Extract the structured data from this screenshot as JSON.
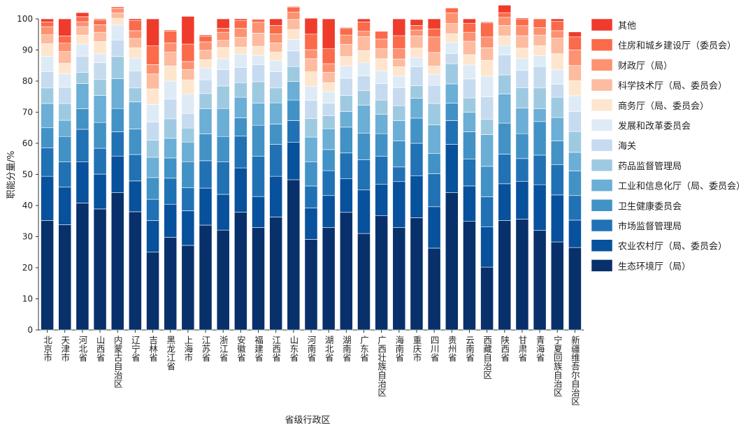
{
  "chart_data": {
    "type": "bar",
    "stacked": true,
    "title": "",
    "xlabel": "省级行政区",
    "ylabel": "职能分量/%",
    "ylim": [
      0,
      100
    ],
    "yticks": [
      0,
      10,
      20,
      30,
      40,
      50,
      60,
      70,
      80,
      90,
      100
    ],
    "legend_position": "right",
    "categories": [
      "北京市",
      "天津市",
      "河北省",
      "山西省",
      "内蒙古自治区",
      "辽宁省",
      "吉林省",
      "黑龙江省",
      "上海市",
      "江苏省",
      "浙江省",
      "安徽省",
      "福建省",
      "江西省",
      "山东省",
      "河南省",
      "湖北省",
      "湖南省",
      "广东省",
      "广西壮族自治区",
      "海南省",
      "重庆市",
      "四川省",
      "贵州省",
      "云南省",
      "西藏自治区",
      "陕西省",
      "甘肃省",
      "青海省",
      "宁夏回族自治区",
      "新疆维吾尔自治区"
    ],
    "series": [
      {
        "name": "生态环境厅（局）",
        "color": "#08306b",
        "values": [
          35.2,
          33.8,
          40.8,
          38.9,
          44.2,
          38.0,
          25.0,
          29.8,
          27.2,
          33.7,
          32.1,
          37.9,
          32.9,
          36.3,
          48.3,
          29.1,
          32.9,
          37.8,
          31.0,
          36.7,
          32.9,
          36.1,
          26.3,
          44.2,
          34.9,
          20.2,
          35.2,
          35.6,
          32.0,
          28.3,
          26.5
        ]
      },
      {
        "name": "农业农村厅（局、委员会）",
        "color": "#08519c",
        "values": [
          14.2,
          12.1,
          13.2,
          11.2,
          11.7,
          9.9,
          10.2,
          10.6,
          11.1,
          11.9,
          11.5,
          14.2,
          10.0,
          13.1,
          12.0,
          10.1,
          10.3,
          10.8,
          14.0,
          10.1,
          14.8,
          13.4,
          13.3,
          15.5,
          11.4,
          12.9,
          11.8,
          12.2,
          14.7,
          15.1,
          8.8
        ]
      },
      {
        "name": "市场监督管理局",
        "color": "#2171b5",
        "values": [
          9.1,
          8.1,
          10.5,
          8.3,
          7.8,
          8.5,
          6.8,
          8.4,
          7.4,
          8.8,
          10.4,
          10.2,
          12.9,
          10.3,
          7.0,
          7.1,
          8.0,
          8.3,
          9.7,
          9.0,
          4.7,
          10.5,
          10.6,
          7.6,
          8.6,
          9.7,
          9.5,
          7.3,
          9.5,
          9.7,
          7.9
        ]
      },
      {
        "name": "卫生健康委员会",
        "color": "#4292c6",
        "values": [
          6.5,
          8.2,
          6.6,
          8.3,
          7.5,
          8.2,
          7.0,
          6.5,
          8.4,
          8.6,
          8.2,
          5.9,
          10.0,
          6.5,
          6.6,
          7.7,
          6.8,
          8.3,
          8.6,
          7.3,
          8.4,
          8.1,
          6.5,
          5.6,
          8.8,
          9.8,
          10.0,
          8.0,
          10.8,
          7.7,
          7.9
        ]
      },
      {
        "name": "工业和信息化厅（局、委员会）",
        "color": "#6baed6",
        "values": [
          7.8,
          5.2,
          8.1,
          8.7,
          9.6,
          8.7,
          6.5,
          6.3,
          6.3,
          8.1,
          9.0,
          6.6,
          7.1,
          6.8,
          6.0,
          8.0,
          6.7,
          5.0,
          8.9,
          6.2,
          6.5,
          6.4,
          9.2,
          6.2,
          6.3,
          10.2,
          9.3,
          8.2,
          4.1,
          7.5,
          6.0
        ]
      },
      {
        "name": "药品监督管理局",
        "color": "#9ecae1",
        "values": [
          5.0,
          5.4,
          3.6,
          5.2,
          7.1,
          4.5,
          5.5,
          6.3,
          4.5,
          4.9,
          7.2,
          4.7,
          6.9,
          4.8,
          4.8,
          6.0,
          4.2,
          5.2,
          4.8,
          4.6,
          4.8,
          4.0,
          6.9,
          6.5,
          4.6,
          4.9,
          6.2,
          6.6,
          6.7,
          6.5,
          6.7
        ]
      },
      {
        "name": "海关",
        "color": "#c6dbef",
        "values": [
          5.2,
          5.2,
          5.2,
          5.3,
          5.3,
          5.5,
          5.8,
          6.3,
          4.7,
          4.4,
          5.3,
          4.9,
          5.5,
          5.2,
          5.0,
          5.8,
          4.0,
          5.5,
          4.7,
          5.3,
          5.8,
          6.1,
          5.8,
          3.3,
          6.1,
          7.2,
          6.4,
          5.6,
          6.9,
          4.2,
          6.4
        ]
      },
      {
        "name": "发展和改革委员会",
        "color": "#deebf7",
        "values": [
          5.0,
          4.4,
          3.9,
          2.9,
          4.8,
          4.1,
          5.7,
          5.8,
          6.2,
          3.8,
          3.5,
          4.2,
          3.0,
          3.6,
          3.7,
          4.5,
          3.7,
          3.9,
          4.2,
          4.1,
          3.7,
          3.0,
          3.5,
          3.5,
          4.5,
          6.7,
          3.0,
          3.8,
          3.5,
          4.6,
          5.1
        ]
      },
      {
        "name": "商务厅（局、委员会）",
        "color": "#fee6ce",
        "values": [
          4.0,
          3.3,
          2.9,
          3.9,
          2.2,
          3.3,
          5.0,
          4.9,
          4.6,
          2.7,
          3.6,
          2.3,
          2.9,
          2.7,
          3.2,
          4.7,
          2.9,
          3.1,
          3.9,
          3.9,
          3.0,
          3.0,
          2.7,
          2.8,
          3.3,
          5.1,
          3.1,
          3.3,
          3.2,
          5.2,
          4.8
        ]
      },
      {
        "name": "科学技术厅（局、委员会）",
        "color": "#fdbba0",
        "values": [
          2.9,
          3.8,
          2.7,
          3.0,
          1.7,
          3.0,
          4.8,
          4.4,
          3.3,
          3.0,
          2.3,
          3.2,
          4.2,
          3.0,
          3.2,
          4.2,
          3.3,
          3.9,
          4.5,
          3.2,
          2.5,
          3.9,
          4.4,
          3.3,
          4.3,
          4.0,
          3.4,
          4.0,
          3.4,
          5.0,
          4.9
        ]
      },
      {
        "name": "财政厅（局）",
        "color": "#fc9272",
        "values": [
          2.6,
          2.7,
          1.6,
          2.4,
          1.5,
          2.5,
          3.0,
          3.0,
          2.6,
          2.7,
          2.6,
          2.9,
          3.5,
          2.9,
          2.4,
          2.9,
          2.8,
          3.0,
          1.7,
          3.1,
          3.3,
          1.9,
          5.0,
          3.4,
          2.9,
          3.5,
          2.6,
          3.2,
          2.4,
          2.4,
          5.0
        ]
      },
      {
        "name": "住房和城乡建设厅（委员会）",
        "color": "#fb6a4a",
        "values": [
          1.5,
          2.3,
          1.6,
          1.6,
          0.5,
          3.3,
          6.0,
          3.8,
          5.6,
          1.8,
          1.3,
          2.5,
          1.0,
          2.7,
          1.6,
          5.0,
          4.8,
          2.1,
          3.0,
          2.5,
          4.2,
          1.5,
          2.6,
          1.6,
          2.9,
          4.5,
          1.5,
          2.2,
          2.8,
          3.0,
          4.2
        ]
      },
      {
        "name": "其他",
        "color": "#ef3b2c",
        "values": [
          1.0,
          5.5,
          1.3,
          0.3,
          0.1,
          0.5,
          8.7,
          0.3,
          8.9,
          0.4,
          3.0,
          0.5,
          0.1,
          2.1,
          0.2,
          5.1,
          9.6,
          0.3,
          1.0,
          0.0,
          5.4,
          1.9,
          3.2,
          0.0,
          1.4,
          0.3,
          2.4,
          0.3,
          0.0,
          0.8,
          1.6
        ]
      }
    ]
  }
}
